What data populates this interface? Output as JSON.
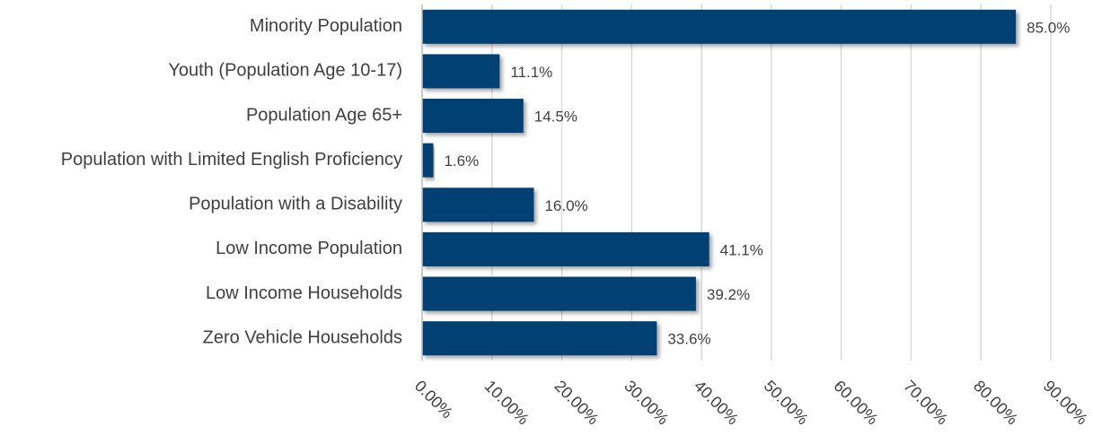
{
  "chart_data": {
    "type": "bar",
    "orientation": "horizontal",
    "categories": [
      "Minority Population",
      "Youth (Population Age 10-17)",
      "Population Age 65+",
      "Population with Limited English Proficiency",
      "Population with a Disability",
      "Low Income Population",
      "Low Income Households",
      "Zero Vehicle Households"
    ],
    "values": [
      85.0,
      11.1,
      14.5,
      1.6,
      16.0,
      41.1,
      39.2,
      33.6
    ],
    "value_labels": [
      "85.0%",
      "11.1%",
      "14.5%",
      "1.6%",
      "16.0%",
      "41.1%",
      "39.2%",
      "33.6%"
    ],
    "color": "#023f73",
    "xlim": [
      0,
      90
    ],
    "xticks": [
      {
        "value": 0,
        "label": "0.00%"
      },
      {
        "value": 10,
        "label": "10.00%"
      },
      {
        "value": 20,
        "label": "20.00%"
      },
      {
        "value": 30,
        "label": "30.00%"
      },
      {
        "value": 40,
        "label": "40.00%"
      },
      {
        "value": 50,
        "label": "50.00%"
      },
      {
        "value": 60,
        "label": "60.00%"
      },
      {
        "value": 70,
        "label": "70.00%"
      },
      {
        "value": 80,
        "label": "80.00%"
      },
      {
        "value": 90,
        "label": "90.00%"
      }
    ],
    "grid": true
  }
}
